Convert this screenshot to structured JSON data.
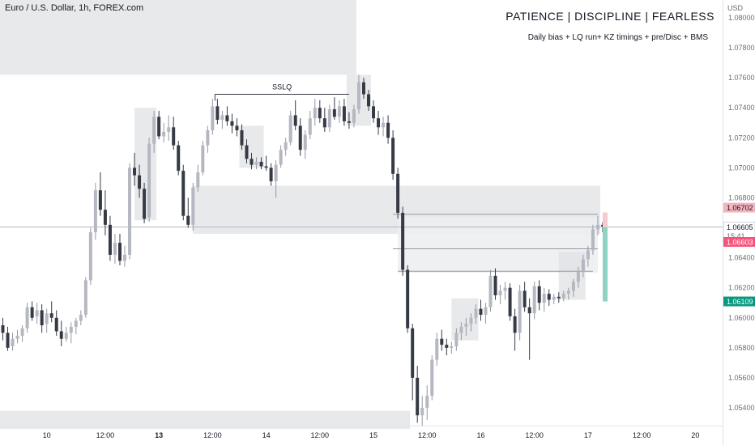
{
  "header": {
    "symbol": "Euro / U.S. Dollar, 1h, FOREX.com",
    "currency": "USD"
  },
  "annotations": {
    "motto": "PATIENCE  |  DISCIPLINE  |  FEARLESS",
    "subtitle": "Daily bias + LQ run+ KZ timings  +  pre/Disc + BMS",
    "sslq": "SSLQ"
  },
  "colors": {
    "candle": "#363a45",
    "zone": "#dfe0e3",
    "zone_light": "#eceef1",
    "grid_text": "#131722",
    "axis_text": "#6a6d78",
    "price_current": "#ffffff",
    "price_high": "#f5b5bf",
    "price_red": "#f7537a",
    "price_green": "#089981",
    "rr_green": "#8fd3c4",
    "rr_red": "#f7c9cf"
  },
  "chart_data": {
    "type": "candlestick",
    "instrument": "Euro / U.S. Dollar",
    "timeframe": "1h",
    "ylim": [
      1.0526,
      1.0818
    ],
    "y_ticks": [
      1.054,
      1.056,
      1.058,
      1.06,
      1.062,
      1.064,
      1.066,
      1.068,
      1.07,
      1.072,
      1.074,
      1.076,
      1.078,
      1.08
    ],
    "y_tick_labels": [
      "1.05400",
      "1.05600",
      "1.05800",
      "1.06000",
      "1.06200",
      "1.06400",
      "1.06600",
      "1.06800",
      "1.07000",
      "1.07200",
      "1.07400",
      "1.07600",
      "1.07800",
      "1.08000"
    ],
    "x_ticks": [
      {
        "bar": 9,
        "label": "10",
        "bold": false
      },
      {
        "bar": 21,
        "label": "12:00",
        "bold": false
      },
      {
        "bar": 32,
        "label": "13",
        "bold": true
      },
      {
        "bar": 43,
        "label": "12:00",
        "bold": false
      },
      {
        "bar": 54,
        "label": "14",
        "bold": false
      },
      {
        "bar": 65,
        "label": "12:00",
        "bold": false
      },
      {
        "bar": 76,
        "label": "15",
        "bold": false
      },
      {
        "bar": 87,
        "label": "12:00",
        "bold": false
      },
      {
        "bar": 98,
        "label": "16",
        "bold": false
      },
      {
        "bar": 109,
        "label": "12:00",
        "bold": false
      },
      {
        "bar": 120,
        "label": "17",
        "bold": false
      },
      {
        "bar": 131,
        "label": "12:00",
        "bold": false
      },
      {
        "bar": 142,
        "label": "20",
        "bold": false
      }
    ],
    "price_labels": [
      {
        "value": 1.06702,
        "label": "1.06702",
        "style": "high"
      },
      {
        "value": 1.06605,
        "label": "1.06605",
        "sub": "15:41",
        "style": "current"
      },
      {
        "value": 1.06603,
        "label": "1.06603",
        "style": "red"
      },
      {
        "value": 1.06109,
        "label": "1.06109",
        "style": "green"
      }
    ],
    "zones": [
      {
        "from_bar": -1,
        "to_bar": 72.5,
        "low": 1.0762,
        "high": 1.0816,
        "shade": "dark"
      },
      {
        "from_bar": 39,
        "to_bar": 122.5,
        "low": 1.0656,
        "high": 1.0688,
        "shade": "dark"
      },
      {
        "from_bar": 81,
        "to_bar": 122,
        "low": 1.063,
        "high": 1.0667,
        "shade": "light"
      },
      {
        "from_bar": -1,
        "to_bar": 83.5,
        "low": 1.0526,
        "high": 1.0538,
        "shade": "dark"
      },
      {
        "from_bar": 27,
        "to_bar": 31.5,
        "low": 1.0665,
        "high": 1.074,
        "shade": "dark"
      },
      {
        "from_bar": 48.5,
        "to_bar": 53.5,
        "low": 1.07,
        "high": 1.0728,
        "shade": "dark"
      },
      {
        "from_bar": 70.5,
        "to_bar": 75.5,
        "low": 1.0728,
        "high": 1.0762,
        "shade": "dark"
      },
      {
        "from_bar": 92,
        "to_bar": 97.5,
        "low": 1.0585,
        "high": 1.0613,
        "shade": "dark"
      },
      {
        "from_bar": 114,
        "to_bar": 119.5,
        "low": 1.0612,
        "high": 1.0644,
        "shade": "dark"
      }
    ],
    "lines": [
      {
        "from_bar": 43.5,
        "to_bar": 71,
        "value": 1.0749,
        "label": "SSLQ"
      },
      {
        "from_bar": 80,
        "to_bar": 122,
        "value": 1.0669
      },
      {
        "from_bar": 80,
        "to_bar": 122,
        "value": 1.0646
      },
      {
        "from_bar": 81,
        "to_bar": 121,
        "value": 1.0631
      }
    ],
    "risk_reward": {
      "bar": 123,
      "entry": 1.06603,
      "stop": 1.06702,
      "target": 1.06109
    },
    "ohlc": [
      [
        1.0595,
        1.06,
        1.0585,
        1.059
      ],
      [
        1.059,
        1.0594,
        1.0578,
        1.058
      ],
      [
        1.0581,
        1.059,
        1.0578,
        1.0586
      ],
      [
        1.0586,
        1.0592,
        1.0583,
        1.0588
      ],
      [
        1.0588,
        1.0595,
        1.0584,
        1.0593
      ],
      [
        1.0593,
        1.061,
        1.059,
        1.0607
      ],
      [
        1.0607,
        1.0611,
        1.0598,
        1.06
      ],
      [
        1.0601,
        1.061,
        1.0596,
        1.0605
      ],
      [
        1.0605,
        1.0609,
        1.059,
        1.0595
      ],
      [
        1.0596,
        1.0606,
        1.059,
        1.0603
      ],
      [
        1.0603,
        1.0611,
        1.0597,
        1.06
      ],
      [
        1.06,
        1.0605,
        1.0588,
        1.0591
      ],
      [
        1.0591,
        1.0598,
        1.0581,
        1.0586
      ],
      [
        1.0586,
        1.0594,
        1.0584,
        1.059
      ],
      [
        1.059,
        1.0597,
        1.0583,
        1.0594
      ],
      [
        1.0594,
        1.06,
        1.0589,
        1.0598
      ],
      [
        1.0598,
        1.0605,
        1.0595,
        1.0602
      ],
      [
        1.0602,
        1.0627,
        1.06,
        1.0625
      ],
      [
        1.0625,
        1.066,
        1.0622,
        1.0657
      ],
      [
        1.0657,
        1.069,
        1.0652,
        1.0685
      ],
      [
        1.0685,
        1.0697,
        1.0668,
        1.0672
      ],
      [
        1.0672,
        1.0685,
        1.0655,
        1.0662
      ],
      [
        1.0662,
        1.0668,
        1.0638,
        1.0642
      ],
      [
        1.0642,
        1.0656,
        1.0636,
        1.065
      ],
      [
        1.065,
        1.0656,
        1.0635,
        1.0638
      ],
      [
        1.0638,
        1.0648,
        1.0634,
        1.0642
      ],
      [
        1.0642,
        1.0703,
        1.0639,
        1.07
      ],
      [
        1.07,
        1.071,
        1.0688,
        1.0695
      ],
      [
        1.0695,
        1.0702,
        1.068,
        1.0686
      ],
      [
        1.0686,
        1.069,
        1.0663,
        1.0666
      ],
      [
        1.0667,
        1.072,
        1.0664,
        1.0716
      ],
      [
        1.0716,
        1.0738,
        1.071,
        1.0734
      ],
      [
        1.0734,
        1.0738,
        1.0719,
        1.0721
      ],
      [
        1.0721,
        1.073,
        1.0717,
        1.0724
      ],
      [
        1.0724,
        1.0735,
        1.0718,
        1.0727
      ],
      [
        1.0727,
        1.0734,
        1.0712,
        1.0715
      ],
      [
        1.0715,
        1.0718,
        1.0695,
        1.0698
      ],
      [
        1.0698,
        1.0702,
        1.0665,
        1.0668
      ],
      [
        1.0668,
        1.068,
        1.066,
        1.0662
      ],
      [
        1.0662,
        1.069,
        1.0658,
        1.0687
      ],
      [
        1.0687,
        1.0702,
        1.0684,
        1.0697
      ],
      [
        1.0697,
        1.0718,
        1.0695,
        1.0715
      ],
      [
        1.0715,
        1.0728,
        1.071,
        1.0725
      ],
      [
        1.0725,
        1.0746,
        1.0722,
        1.0741
      ],
      [
        1.0741,
        1.0746,
        1.0729,
        1.0732
      ],
      [
        1.0732,
        1.0738,
        1.0726,
        1.0735
      ],
      [
        1.0735,
        1.0741,
        1.0728,
        1.0731
      ],
      [
        1.0731,
        1.0736,
        1.0723,
        1.0728
      ],
      [
        1.0728,
        1.0733,
        1.0721,
        1.0725
      ],
      [
        1.0725,
        1.0729,
        1.0712,
        1.0715
      ],
      [
        1.0715,
        1.0719,
        1.0703,
        1.0706
      ],
      [
        1.0706,
        1.071,
        1.0699,
        1.0702
      ],
      [
        1.0702,
        1.0707,
        1.0699,
        1.0704
      ],
      [
        1.0704,
        1.0707,
        1.0699,
        1.0701
      ],
      [
        1.0701,
        1.0708,
        1.0698,
        1.07
      ],
      [
        1.07,
        1.0703,
        1.0688,
        1.0691
      ],
      [
        1.0691,
        1.0705,
        1.068,
        1.0702
      ],
      [
        1.0702,
        1.0715,
        1.07,
        1.0712
      ],
      [
        1.0712,
        1.072,
        1.0708,
        1.0717
      ],
      [
        1.0717,
        1.0738,
        1.0715,
        1.0735
      ],
      [
        1.0735,
        1.0745,
        1.0725,
        1.0728
      ],
      [
        1.0728,
        1.0733,
        1.0708,
        1.0712
      ],
      [
        1.0712,
        1.0725,
        1.0706,
        1.0722
      ],
      [
        1.0722,
        1.0738,
        1.0719,
        1.0733
      ],
      [
        1.0733,
        1.0746,
        1.0728,
        1.074
      ],
      [
        1.074,
        1.0745,
        1.073,
        1.0733
      ],
      [
        1.0733,
        1.074,
        1.0724,
        1.0727
      ],
      [
        1.0727,
        1.0742,
        1.0724,
        1.0739
      ],
      [
        1.0739,
        1.0747,
        1.0732,
        1.0734
      ],
      [
        1.0734,
        1.0745,
        1.073,
        1.0741
      ],
      [
        1.0741,
        1.0746,
        1.0728,
        1.0731
      ],
      [
        1.0731,
        1.0737,
        1.0726,
        1.073
      ],
      [
        1.073,
        1.0742,
        1.0727,
        1.0739
      ],
      [
        1.0739,
        1.0762,
        1.0736,
        1.0757
      ],
      [
        1.0757,
        1.076,
        1.0746,
        1.0749
      ],
      [
        1.0749,
        1.0752,
        1.0738,
        1.0741
      ],
      [
        1.0741,
        1.0745,
        1.073,
        1.0733
      ],
      [
        1.0733,
        1.0738,
        1.0722,
        1.0727
      ],
      [
        1.0727,
        1.0734,
        1.0721,
        1.073
      ],
      [
        1.073,
        1.0735,
        1.0716,
        1.072
      ],
      [
        1.072,
        1.0725,
        1.0692,
        1.0696
      ],
      [
        1.0696,
        1.07,
        1.0666,
        1.067
      ],
      [
        1.067,
        1.0674,
        1.0628,
        1.0632
      ],
      [
        1.0632,
        1.0635,
        1.059,
        1.0593
      ],
      [
        1.0593,
        1.0596,
        1.0545,
        1.056
      ],
      [
        1.056,
        1.0568,
        1.053,
        1.0535
      ],
      [
        1.0535,
        1.0548,
        1.0528,
        1.054
      ],
      [
        1.054,
        1.0555,
        1.0532,
        1.0548
      ],
      [
        1.0548,
        1.0575,
        1.0545,
        1.0572
      ],
      [
        1.0572,
        1.059,
        1.0568,
        1.0586
      ],
      [
        1.0586,
        1.0592,
        1.0578,
        1.0582
      ],
      [
        1.0582,
        1.0586,
        1.0575,
        1.058
      ],
      [
        1.058,
        1.0584,
        1.0576,
        1.0581
      ],
      [
        1.0581,
        1.0593,
        1.0578,
        1.059
      ],
      [
        1.059,
        1.0597,
        1.0585,
        1.0594
      ],
      [
        1.0594,
        1.06,
        1.0588,
        1.0596
      ],
      [
        1.0596,
        1.0603,
        1.0591,
        1.06
      ],
      [
        1.06,
        1.0609,
        1.0596,
        1.0606
      ],
      [
        1.0606,
        1.0612,
        1.0598,
        1.0602
      ],
      [
        1.0602,
        1.061,
        1.0596,
        1.0607
      ],
      [
        1.0607,
        1.0632,
        1.0604,
        1.0628
      ],
      [
        1.0628,
        1.0633,
        1.0612,
        1.0615
      ],
      [
        1.0615,
        1.0622,
        1.0609,
        1.0618
      ],
      [
        1.0618,
        1.0624,
        1.0612,
        1.062
      ],
      [
        1.062,
        1.0623,
        1.0598,
        1.0601
      ],
      [
        1.0601,
        1.0606,
        1.0578,
        1.059
      ],
      [
        1.059,
        1.0622,
        1.0585,
        1.0618
      ],
      [
        1.0618,
        1.0624,
        1.0604,
        1.0607
      ],
      [
        1.0607,
        1.0613,
        1.0572,
        1.0603
      ],
      [
        1.0603,
        1.0624,
        1.0599,
        1.0621
      ],
      [
        1.0621,
        1.0625,
        1.0605,
        1.061
      ],
      [
        1.061,
        1.062,
        1.0604,
        1.0616
      ],
      [
        1.0616,
        1.0619,
        1.0608,
        1.0612
      ],
      [
        1.0612,
        1.0616,
        1.0609,
        1.0614
      ],
      [
        1.0614,
        1.0617,
        1.061,
        1.0613
      ],
      [
        1.0613,
        1.0618,
        1.0611,
        1.0616
      ],
      [
        1.0616,
        1.062,
        1.0612,
        1.0618
      ],
      [
        1.0618,
        1.0626,
        1.0614,
        1.0624
      ],
      [
        1.0624,
        1.0634,
        1.062,
        1.0631
      ],
      [
        1.0631,
        1.0642,
        1.0627,
        1.0639
      ],
      [
        1.0639,
        1.0648,
        1.0634,
        1.0645
      ],
      [
        1.0645,
        1.0662,
        1.0642,
        1.0659
      ],
      [
        1.0659,
        1.0668,
        1.0655,
        1.0662
      ],
      [
        1.0662,
        1.0664,
        1.0657,
        1.0661
      ]
    ]
  }
}
